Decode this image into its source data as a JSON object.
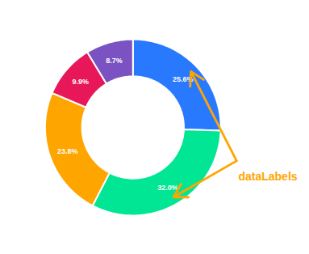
{
  "chart_data": {
    "type": "pie",
    "values": [
      25.6,
      32.0,
      23.8,
      9.9,
      8.7
    ],
    "value_labels": [
      "25.6%",
      "32.0%",
      "23.8%",
      "9.9%",
      "8.7%"
    ],
    "colors": [
      "#2979FF",
      "#00E694",
      "#FFA500",
      "#E8175A",
      "#7B52C1"
    ],
    "data_labels": true,
    "annotations": [
      {
        "text": "dataLabels",
        "color": "#FFA500"
      }
    ]
  }
}
